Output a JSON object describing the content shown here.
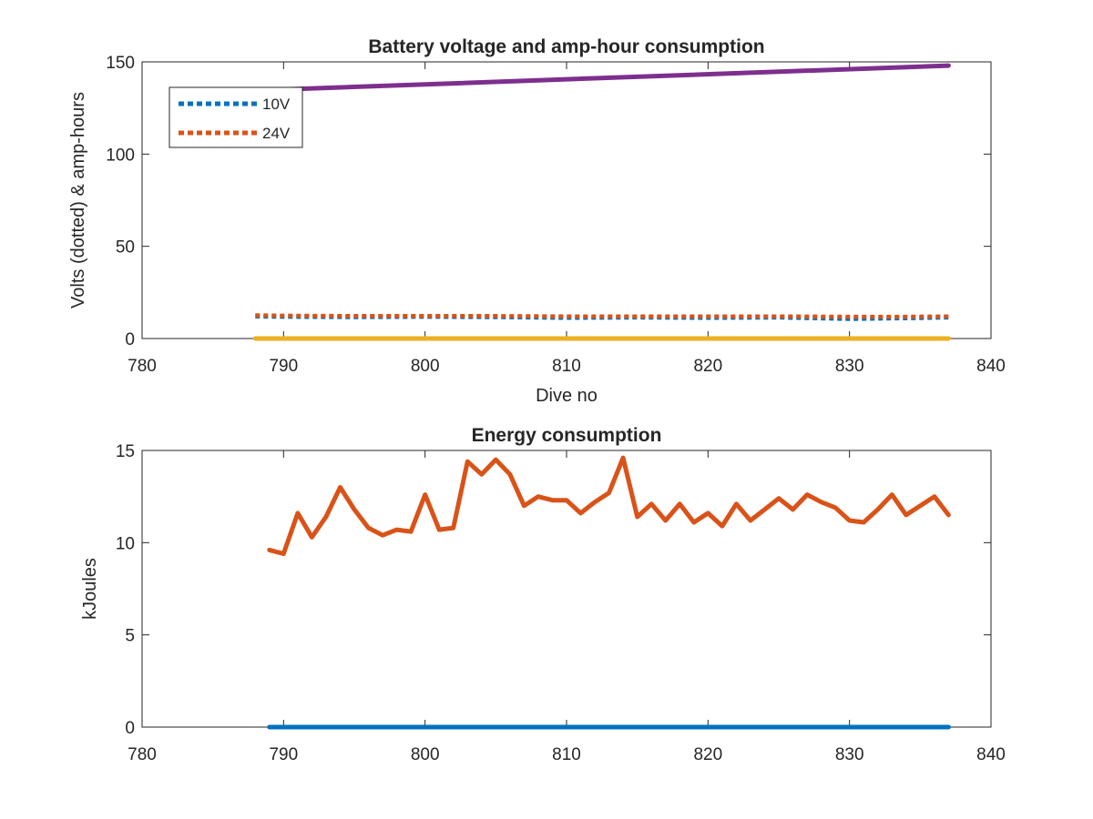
{
  "chart_data": [
    {
      "type": "line",
      "title": "Battery voltage and amp-hour consumption",
      "xlabel": "Dive no",
      "ylabel": "Volts (dotted) & amp-hours",
      "xlim": [
        780,
        840
      ],
      "ylim": [
        0,
        150
      ],
      "xticks": [
        "780",
        "790",
        "800",
        "810",
        "820",
        "830",
        "840"
      ],
      "yticks": [
        "0",
        "50",
        "100",
        "150"
      ],
      "grid": false,
      "legend_position": "top-left",
      "series": [
        {
          "name": "10V",
          "style": "dotted",
          "color": "#0072BD",
          "x": [
            788,
            790,
            795,
            800,
            805,
            810,
            815,
            820,
            825,
            830,
            834,
            837
          ],
          "y": [
            12,
            11.8,
            11.6,
            11.8,
            11.6,
            11.2,
            11.4,
            11.2,
            11.4,
            10.6,
            11.0,
            11.4
          ]
        },
        {
          "name": "24V",
          "style": "dotted",
          "color": "#D95319",
          "x": [
            788,
            790,
            795,
            800,
            805,
            810,
            815,
            820,
            825,
            830,
            834,
            837
          ],
          "y": [
            12.6,
            12.4,
            12.2,
            12.2,
            12.2,
            12.0,
            12.0,
            12.0,
            12.0,
            11.8,
            11.8,
            12.0
          ]
        },
        {
          "style": "solid",
          "color": "#EDB120",
          "x": [
            788,
            837
          ],
          "y": [
            0,
            0
          ]
        },
        {
          "style": "solid",
          "color": "#7E2F8E",
          "x": [
            788,
            837
          ],
          "y": [
            134.5,
            148
          ]
        }
      ]
    },
    {
      "type": "line",
      "title": "Energy consumption",
      "xlabel": "",
      "ylabel": "kJoules",
      "xlim": [
        780,
        840
      ],
      "ylim": [
        0,
        15
      ],
      "xticks": [
        "780",
        "790",
        "800",
        "810",
        "820",
        "830",
        "840"
      ],
      "yticks": [
        "0",
        "5",
        "10",
        "15"
      ],
      "grid": false,
      "series": [
        {
          "style": "solid",
          "color": "#D95319",
          "x": [
            789,
            790,
            791,
            792,
            793,
            794,
            795,
            796,
            797,
            798,
            799,
            800,
            801,
            802,
            803,
            804,
            805,
            806,
            807,
            808,
            809,
            810,
            811,
            812,
            813,
            814,
            815,
            816,
            817,
            818,
            819,
            820,
            821,
            822,
            823,
            824,
            825,
            826,
            827,
            828,
            829,
            830,
            831,
            832,
            833,
            834,
            835,
            836,
            837
          ],
          "y": [
            9.6,
            9.4,
            11.6,
            10.3,
            11.4,
            13.0,
            11.8,
            10.8,
            10.4,
            10.7,
            10.6,
            12.6,
            10.7,
            10.8,
            14.4,
            13.7,
            14.5,
            13.7,
            12.0,
            12.5,
            12.3,
            12.3,
            11.6,
            12.2,
            12.7,
            14.6,
            11.4,
            12.1,
            11.2,
            12.1,
            11.1,
            11.6,
            10.9,
            12.1,
            11.2,
            11.8,
            12.4,
            11.8,
            12.6,
            12.2,
            11.9,
            11.2,
            11.1,
            11.8,
            12.6,
            11.5,
            12.0,
            12.5,
            11.5
          ]
        },
        {
          "style": "solid",
          "color": "#0072BD",
          "x": [
            789,
            837
          ],
          "y": [
            0,
            0
          ]
        }
      ]
    }
  ]
}
